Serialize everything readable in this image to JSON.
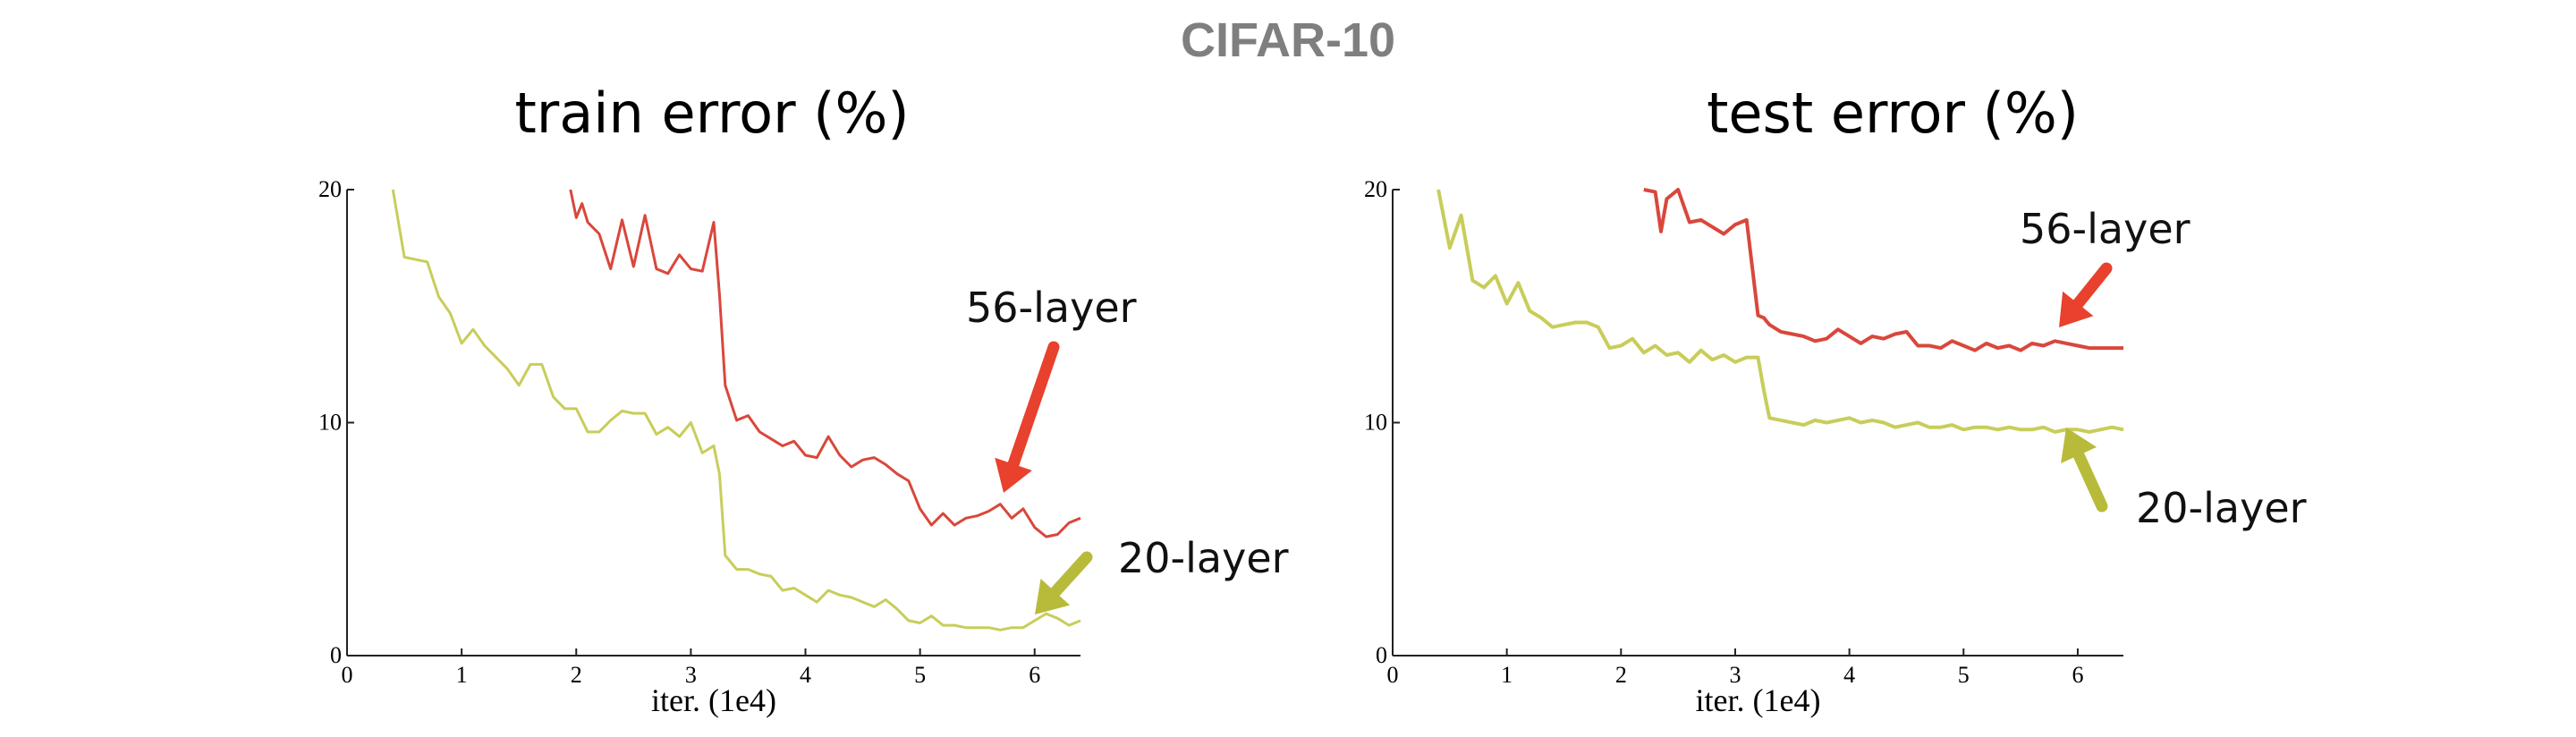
{
  "figure_title": "CIFAR-10",
  "colors": {
    "red": "#d9473c",
    "yellow": "#c8cd5a",
    "arrow_red": "#e8412d",
    "arrow_yellow": "#b8bb3a",
    "title_gray": "#7f7f7f"
  },
  "chart_data": [
    {
      "type": "line",
      "title": "train error (%)",
      "xlabel": "iter. (1e4)",
      "ylabel": "",
      "xlim": [
        0,
        6.4
      ],
      "ylim": [
        0,
        20
      ],
      "xticks": [
        0,
        1,
        2,
        3,
        4,
        5,
        6
      ],
      "yticks": [
        0,
        10,
        20
      ],
      "grid": false,
      "series": [
        {
          "name": "56-layer",
          "color": "#d9473c",
          "x": [
            1.95,
            2.0,
            2.05,
            2.1,
            2.2,
            2.3,
            2.4,
            2.5,
            2.6,
            2.7,
            2.8,
            2.9,
            3.0,
            3.1,
            3.2,
            3.25,
            3.3,
            3.4,
            3.5,
            3.6,
            3.7,
            3.8,
            3.9,
            4.0,
            4.1,
            4.2,
            4.3,
            4.4,
            4.5,
            4.6,
            4.7,
            4.8,
            4.9,
            5.0,
            5.1,
            5.2,
            5.3,
            5.4,
            5.5,
            5.6,
            5.7,
            5.8,
            5.9,
            6.0,
            6.1,
            6.2,
            6.3,
            6.4
          ],
          "y": [
            20.0,
            18.8,
            19.4,
            18.6,
            18.1,
            16.6,
            18.7,
            16.7,
            18.9,
            16.6,
            16.4,
            17.2,
            16.6,
            16.5,
            18.6,
            15.5,
            11.6,
            10.1,
            10.3,
            9.6,
            9.3,
            9.0,
            9.2,
            8.6,
            8.5,
            9.4,
            8.6,
            8.1,
            8.4,
            8.5,
            8.2,
            7.8,
            7.5,
            6.3,
            5.6,
            6.1,
            5.6,
            5.9,
            6.0,
            6.2,
            6.5,
            5.9,
            6.3,
            5.5,
            5.1,
            5.2,
            5.7,
            5.9
          ]
        },
        {
          "name": "20-layer",
          "color": "#c8cd5a",
          "x": [
            0.4,
            0.5,
            0.6,
            0.7,
            0.8,
            0.9,
            1.0,
            1.1,
            1.2,
            1.3,
            1.4,
            1.5,
            1.6,
            1.7,
            1.8,
            1.9,
            2.0,
            2.1,
            2.2,
            2.3,
            2.4,
            2.5,
            2.6,
            2.7,
            2.8,
            2.9,
            3.0,
            3.1,
            3.2,
            3.25,
            3.3,
            3.4,
            3.5,
            3.6,
            3.7,
            3.8,
            3.9,
            4.0,
            4.1,
            4.2,
            4.3,
            4.4,
            4.5,
            4.6,
            4.7,
            4.8,
            4.9,
            5.0,
            5.1,
            5.2,
            5.3,
            5.4,
            5.5,
            5.6,
            5.7,
            5.8,
            5.9,
            6.0,
            6.1,
            6.2,
            6.3,
            6.4
          ],
          "y": [
            20.0,
            17.1,
            17.0,
            16.9,
            15.4,
            14.7,
            13.4,
            14.0,
            13.3,
            12.8,
            12.3,
            11.6,
            12.5,
            12.5,
            11.1,
            10.6,
            10.6,
            9.6,
            9.6,
            10.1,
            10.5,
            10.4,
            10.4,
            9.5,
            9.8,
            9.4,
            10.0,
            8.7,
            9.0,
            7.8,
            4.3,
            3.7,
            3.7,
            3.5,
            3.4,
            2.8,
            2.9,
            2.6,
            2.3,
            2.8,
            2.6,
            2.5,
            2.3,
            2.1,
            2.4,
            2.0,
            1.5,
            1.4,
            1.7,
            1.3,
            1.3,
            1.2,
            1.2,
            1.2,
            1.1,
            1.2,
            1.2,
            1.5,
            1.8,
            1.6,
            1.3,
            1.5
          ]
        }
      ],
      "annotations": [
        {
          "text": "56-layer",
          "color": "#e8412d"
        },
        {
          "text": "20-layer",
          "color": "#b8bb3a"
        }
      ]
    },
    {
      "type": "line",
      "title": "test error (%)",
      "xlabel": "iter. (1e4)",
      "ylabel": "",
      "xlim": [
        0,
        6.4
      ],
      "ylim": [
        0,
        20
      ],
      "xticks": [
        0,
        1,
        2,
        3,
        4,
        5,
        6
      ],
      "yticks": [
        0,
        10,
        20
      ],
      "grid": false,
      "series": [
        {
          "name": "56-layer",
          "color": "#d9473c",
          "x": [
            2.2,
            2.3,
            2.35,
            2.4,
            2.5,
            2.6,
            2.7,
            2.8,
            2.9,
            3.0,
            3.1,
            3.2,
            3.25,
            3.3,
            3.4,
            3.5,
            3.6,
            3.7,
            3.8,
            3.9,
            4.0,
            4.1,
            4.2,
            4.3,
            4.4,
            4.5,
            4.6,
            4.7,
            4.8,
            4.9,
            5.0,
            5.1,
            5.2,
            5.3,
            5.4,
            5.5,
            5.6,
            5.7,
            5.8,
            5.9,
            6.0,
            6.1,
            6.2,
            6.3,
            6.4
          ],
          "y": [
            20.0,
            19.9,
            18.2,
            19.6,
            20.0,
            18.6,
            18.7,
            18.4,
            18.1,
            18.5,
            18.7,
            14.6,
            14.5,
            14.2,
            13.9,
            13.8,
            13.7,
            13.5,
            13.6,
            14.0,
            13.7,
            13.4,
            13.7,
            13.6,
            13.8,
            13.9,
            13.3,
            13.3,
            13.2,
            13.5,
            13.3,
            13.1,
            13.4,
            13.2,
            13.3,
            13.1,
            13.4,
            13.3,
            13.5,
            13.4,
            13.3,
            13.2,
            13.2,
            13.2,
            13.2
          ]
        },
        {
          "name": "20-layer",
          "color": "#c8cd5a",
          "x": [
            0.4,
            0.5,
            0.6,
            0.7,
            0.8,
            0.9,
            1.0,
            1.1,
            1.2,
            1.3,
            1.4,
            1.5,
            1.6,
            1.7,
            1.8,
            1.9,
            2.0,
            2.1,
            2.2,
            2.3,
            2.4,
            2.5,
            2.6,
            2.7,
            2.8,
            2.9,
            3.0,
            3.1,
            3.2,
            3.25,
            3.3,
            3.4,
            3.5,
            3.6,
            3.7,
            3.8,
            3.9,
            4.0,
            4.1,
            4.2,
            4.3,
            4.4,
            4.5,
            4.6,
            4.7,
            4.8,
            4.9,
            5.0,
            5.1,
            5.2,
            5.3,
            5.4,
            5.5,
            5.6,
            5.7,
            5.8,
            5.9,
            6.0,
            6.1,
            6.2,
            6.3,
            6.4
          ],
          "y": [
            20.0,
            17.5,
            18.9,
            16.1,
            15.8,
            16.3,
            15.1,
            16.0,
            14.8,
            14.5,
            14.1,
            14.2,
            14.3,
            14.3,
            14.1,
            13.2,
            13.3,
            13.6,
            13.0,
            13.3,
            12.9,
            13.0,
            12.6,
            13.1,
            12.7,
            12.9,
            12.6,
            12.8,
            12.8,
            11.4,
            10.2,
            10.1,
            10.0,
            9.9,
            10.1,
            10.0,
            10.1,
            10.2,
            10.0,
            10.1,
            10.0,
            9.8,
            9.9,
            10.0,
            9.8,
            9.8,
            9.9,
            9.7,
            9.8,
            9.8,
            9.7,
            9.8,
            9.7,
            9.7,
            9.8,
            9.6,
            9.7,
            9.7,
            9.6,
            9.7,
            9.8,
            9.7
          ]
        }
      ],
      "annotations": [
        {
          "text": "56-layer",
          "color": "#e8412d"
        },
        {
          "text": "20-layer",
          "color": "#b8bb3a"
        }
      ]
    }
  ]
}
